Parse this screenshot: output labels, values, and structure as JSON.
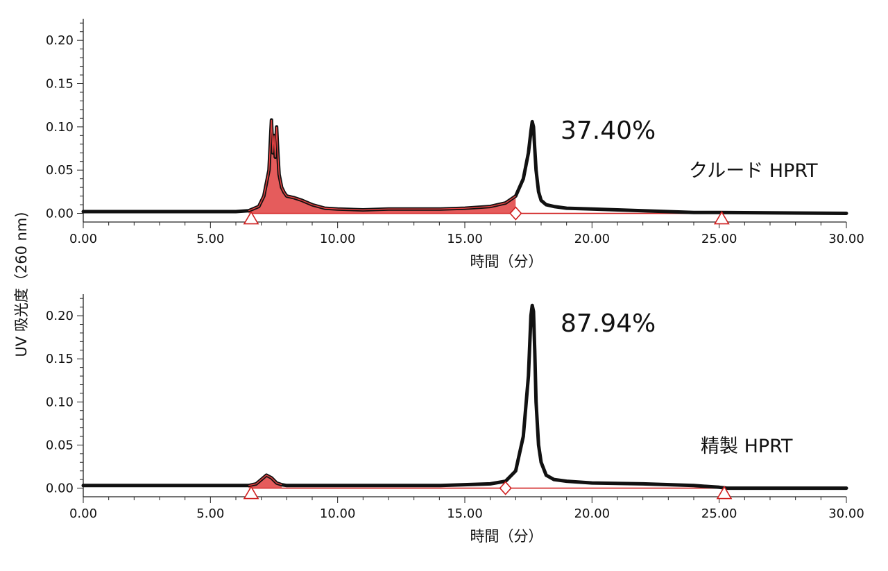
{
  "ylabel": "UV 吸光度（260 nm)",
  "colors": {
    "trace": "#111111",
    "integration": "#e04040",
    "baseline": "#d02020"
  },
  "chart_data": [
    {
      "type": "line",
      "xlabel": "時間（分）",
      "xlim": [
        0,
        30
      ],
      "ylim": [
        -0.01,
        0.225
      ],
      "xticks": [
        "0.00",
        "5.00",
        "10.00",
        "15.00",
        "20.00",
        "25.00",
        "30.00"
      ],
      "yticks": [
        "0.00",
        "0.05",
        "0.10",
        "0.15",
        "0.20"
      ],
      "annotation_pct": "37.40%",
      "annotation_sample": "クルード HPRT",
      "series": [
        {
          "x": [
            0,
            6.0,
            6.5,
            6.9,
            7.1,
            7.3,
            7.4,
            7.45,
            7.5,
            7.55,
            7.6,
            7.65,
            7.7,
            7.8,
            7.9,
            8.0,
            8.3,
            8.6,
            9.0,
            9.5,
            10.0,
            11.0,
            12.0,
            13.0,
            14.0,
            15.0,
            16.0,
            16.6,
            17.0,
            17.3,
            17.5,
            17.6,
            17.65,
            17.7,
            17.75,
            17.8,
            17.9,
            18.0,
            18.2,
            18.5,
            19.0,
            20.0,
            21.0,
            22.0,
            23.0,
            24.0,
            25.0,
            30.0
          ],
          "y": [
            0.002,
            0.002,
            0.003,
            0.008,
            0.02,
            0.05,
            0.108,
            0.07,
            0.09,
            0.065,
            0.1,
            0.07,
            0.045,
            0.03,
            0.024,
            0.02,
            0.018,
            0.015,
            0.01,
            0.006,
            0.005,
            0.004,
            0.005,
            0.005,
            0.005,
            0.006,
            0.008,
            0.012,
            0.02,
            0.04,
            0.07,
            0.095,
            0.106,
            0.1,
            0.075,
            0.05,
            0.025,
            0.015,
            0.01,
            0.008,
            0.006,
            0.005,
            0.004,
            0.003,
            0.002,
            0.001,
            0.001,
            0.0
          ]
        }
      ],
      "integration_region": [
        6.45,
        17.0
      ],
      "markers": [
        {
          "shape": "triangle",
          "x": 6.6
        },
        {
          "shape": "diamond",
          "x": 17.0
        },
        {
          "shape": "triangle",
          "x": 25.1
        }
      ]
    },
    {
      "type": "line",
      "xlabel": "時間（分）",
      "xlim": [
        0,
        30
      ],
      "ylim": [
        -0.01,
        0.225
      ],
      "xticks": [
        "0.00",
        "5.00",
        "10.00",
        "15.00",
        "20.00",
        "25.00",
        "30.00"
      ],
      "yticks": [
        "0.00",
        "0.05",
        "0.10",
        "0.15",
        "0.20"
      ],
      "annotation_pct": "87.94%",
      "annotation_sample": "精製 HPRT",
      "series": [
        {
          "x": [
            0,
            6.5,
            6.8,
            7.0,
            7.2,
            7.4,
            7.6,
            7.8,
            8.0,
            9.0,
            10.0,
            12.0,
            14.0,
            15.0,
            16.0,
            16.6,
            17.0,
            17.3,
            17.5,
            17.6,
            17.65,
            17.7,
            17.75,
            17.8,
            17.9,
            18.0,
            18.2,
            18.5,
            19.0,
            20.0,
            22.0,
            24.0,
            25.0,
            25.3,
            30.0
          ],
          "y": [
            0.003,
            0.003,
            0.005,
            0.01,
            0.015,
            0.012,
            0.006,
            0.004,
            0.003,
            0.003,
            0.003,
            0.003,
            0.003,
            0.004,
            0.005,
            0.008,
            0.02,
            0.06,
            0.13,
            0.2,
            0.212,
            0.205,
            0.16,
            0.1,
            0.05,
            0.03,
            0.015,
            0.01,
            0.008,
            0.006,
            0.005,
            0.003,
            0.001,
            0.0,
            0.0
          ]
        }
      ],
      "integration_region": [
        6.5,
        7.9
      ],
      "markers": [
        {
          "shape": "triangle",
          "x": 6.6
        },
        {
          "shape": "diamond",
          "x": 16.6
        },
        {
          "shape": "triangle",
          "x": 25.2
        }
      ]
    }
  ]
}
